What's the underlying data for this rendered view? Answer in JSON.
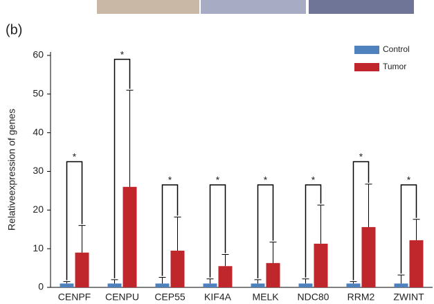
{
  "chart_data": {
    "type": "bar",
    "panel_label": "(b)",
    "ylabel": "Relativeexpression of genes",
    "categories": [
      "CENPF",
      "CENPU",
      "CEP55",
      "KIF4A",
      "MELK",
      "NDC80",
      "RRM2",
      "ZWINT"
    ],
    "series": [
      {
        "name": "Control",
        "color": "#4f81bd",
        "values": [
          1,
          1,
          1,
          1,
          1,
          1,
          1,
          1
        ],
        "errors": [
          0.5,
          1,
          1.6,
          1.2,
          1,
          1.2,
          0.5,
          2.2
        ]
      },
      {
        "name": "Tumor",
        "color": "#c0272d",
        "values": [
          9,
          26,
          9.5,
          5.5,
          6.3,
          11.3,
          15.6,
          12.2
        ],
        "errors": [
          7,
          25,
          8.7,
          3,
          5.4,
          10,
          11.1,
          5.4
        ]
      }
    ],
    "significance": [
      {
        "label": "*",
        "y": 32.5
      },
      {
        "label": "*",
        "y": 59
      },
      {
        "label": "*",
        "y": 26.5
      },
      {
        "label": "*",
        "y": 26.5
      },
      {
        "label": "*",
        "y": 26.5
      },
      {
        "label": "*",
        "y": 26.5
      },
      {
        "label": "*",
        "y": 32.5
      },
      {
        "label": "*",
        "y": 26.5
      }
    ],
    "ylim": [
      0,
      60
    ],
    "yticks": [
      0,
      10,
      20,
      30,
      40,
      50,
      60
    ],
    "legend": "upper-right"
  }
}
